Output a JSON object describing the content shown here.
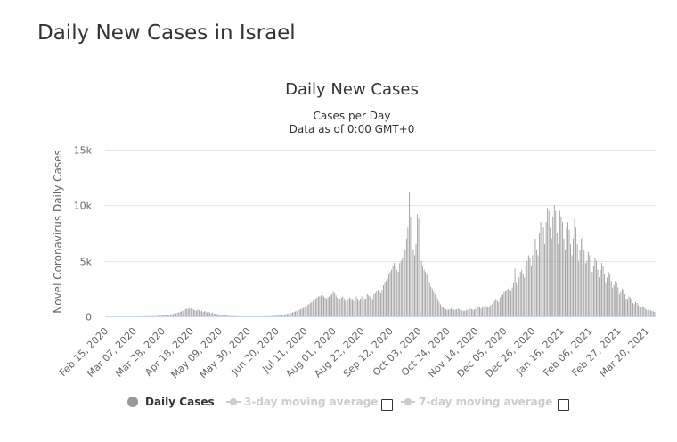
{
  "page": {
    "heading": "Daily New Cases in Israel"
  },
  "chart_data": {
    "type": "bar",
    "title": "Daily New Cases",
    "subtitle_lines": [
      "Cases per Day",
      "Data as of 0:00 GMT+0"
    ],
    "xlabel": "",
    "ylabel": "Novel Coronavirus Daily Cases",
    "ylim": [
      0,
      15000
    ],
    "y_ticks": [
      0,
      5000,
      10000,
      15000
    ],
    "y_tick_labels": [
      "0",
      "5k",
      "10k",
      "15k"
    ],
    "x_start_date": "2020-02-15",
    "x_tick_labels": [
      "Feb 15, 2020",
      "Mar 07, 2020",
      "Mar 28, 2020",
      "Apr 18, 2020",
      "May 09, 2020",
      "May 30, 2020",
      "Jun 20, 2020",
      "Jul 11, 2020",
      "Aug 01, 2020",
      "Aug 22, 2020",
      "Sep 12, 2020",
      "Oct 03, 2020",
      "Oct 24, 2020",
      "Nov 14, 2020",
      "Dec 05, 2020",
      "Dec 26, 2020",
      "Jan 16, 2021",
      "Feb 06, 2021",
      "Feb 27, 2021",
      "Mar 20, 2021"
    ],
    "grid": true,
    "legend_position": "bottom",
    "colors": {
      "bar": "#999999",
      "grid": "#e6e6e6",
      "axis": "#ccd6eb"
    },
    "series": [
      {
        "name": "Daily Cases",
        "values": [
          0,
          0,
          0,
          0,
          0,
          0,
          0,
          0,
          0,
          0,
          0,
          0,
          0,
          0,
          0,
          0,
          0,
          0,
          0,
          0,
          0,
          0,
          0,
          0,
          0,
          1,
          2,
          5,
          9,
          13,
          17,
          20,
          20,
          22,
          24,
          28,
          30,
          35,
          40,
          48,
          56,
          70,
          84,
          98,
          112,
          126,
          140,
          160,
          180,
          200,
          220,
          250,
          280,
          310,
          350,
          400,
          450,
          500,
          600,
          650,
          700,
          650,
          750,
          700,
          650,
          600,
          550,
          500,
          600,
          550,
          450,
          500,
          400,
          450,
          450,
          350,
          400,
          350,
          300,
          350,
          250,
          250,
          200,
          200,
          180,
          150,
          150,
          120,
          100,
          80,
          60,
          50,
          40,
          35,
          30,
          25,
          20,
          15,
          12,
          10,
          10,
          10,
          8,
          8,
          6,
          6,
          6,
          5,
          5,
          5,
          5,
          5,
          5,
          5,
          5,
          5,
          8,
          10,
          12,
          15,
          20,
          25,
          30,
          40,
          50,
          60,
          70,
          80,
          100,
          120,
          140,
          160,
          180,
          200,
          220,
          250,
          280,
          310,
          350,
          400,
          450,
          500,
          550,
          600,
          650,
          700,
          750,
          800,
          900,
          1000,
          1100,
          1200,
          1300,
          1400,
          1500,
          1600,
          1700,
          1800,
          1800,
          1900,
          1900,
          1800,
          1700,
          1600,
          1700,
          1800,
          1900,
          2000,
          2200,
          2100,
          1900,
          1700,
          1500,
          1600,
          1700,
          1800,
          1600,
          1400,
          1300,
          1500,
          1700,
          1600,
          1500,
          1400,
          1700,
          1800,
          1600,
          1400,
          1600,
          1800,
          1700,
          1500,
          1600,
          2000,
          1900,
          1800,
          1500,
          1500,
          2000,
          2100,
          2300,
          2400,
          2200,
          2100,
          2400,
          2800,
          3000,
          3200,
          3400,
          3800,
          4000,
          4200,
          4500,
          4800,
          4500,
          4200,
          4000,
          4800,
          5000,
          5200,
          5500,
          6000,
          7000,
          8000,
          11200,
          9000,
          7500,
          6000,
          5500,
          6500,
          9200,
          8800,
          6500,
          5000,
          4500,
          4200,
          4000,
          3800,
          3500,
          3000,
          2700,
          2500,
          2200,
          2000,
          1800,
          1500,
          1300,
          1100,
          900,
          800,
          700,
          650,
          600,
          600,
          650,
          700,
          650,
          600,
          600,
          650,
          700,
          650,
          600,
          550,
          500,
          500,
          550,
          600,
          650,
          700,
          650,
          600,
          600,
          700,
          800,
          900,
          800,
          700,
          800,
          900,
          1000,
          900,
          800,
          900,
          1000,
          1100,
          1300,
          1400,
          1500,
          1400,
          1300,
          1700,
          1900,
          2000,
          2200,
          2300,
          2400,
          2500,
          2400,
          2300,
          2600,
          3000,
          4300,
          3000,
          2800,
          3500,
          4000,
          4200,
          3800,
          3500,
          4500,
          5000,
          5500,
          5200,
          4500,
          5500,
          6500,
          7000,
          6000,
          5500,
          7500,
          8500,
          9200,
          8000,
          6500,
          8500,
          9800,
          9500,
          8000,
          7000,
          9000,
          10000,
          9500,
          7500,
          6500,
          9500,
          9000,
          8500,
          7000,
          6000,
          8000,
          8500,
          7800,
          6500,
          5500,
          7000,
          8800,
          8000,
          6500,
          5000,
          6000,
          7000,
          7200,
          6000,
          4800,
          5000,
          5800,
          5500,
          4800,
          4000,
          4500,
          5300,
          5000,
          4200,
          3500,
          4200,
          4800,
          4500,
          3800,
          3000,
          3500,
          4000,
          3800,
          3200,
          2600,
          2800,
          3200,
          3000,
          2600,
          2000,
          2200,
          2500,
          2400,
          2000,
          1600,
          1500,
          1800,
          1700,
          1500,
          1200,
          1100,
          1300,
          1200,
          1000,
          900,
          800,
          900,
          850,
          700,
          600,
          550,
          600,
          550,
          500,
          450,
          400
        ]
      },
      {
        "name": "3-day moving average",
        "visible": false
      },
      {
        "name": "7-day moving average",
        "visible": false
      }
    ]
  }
}
